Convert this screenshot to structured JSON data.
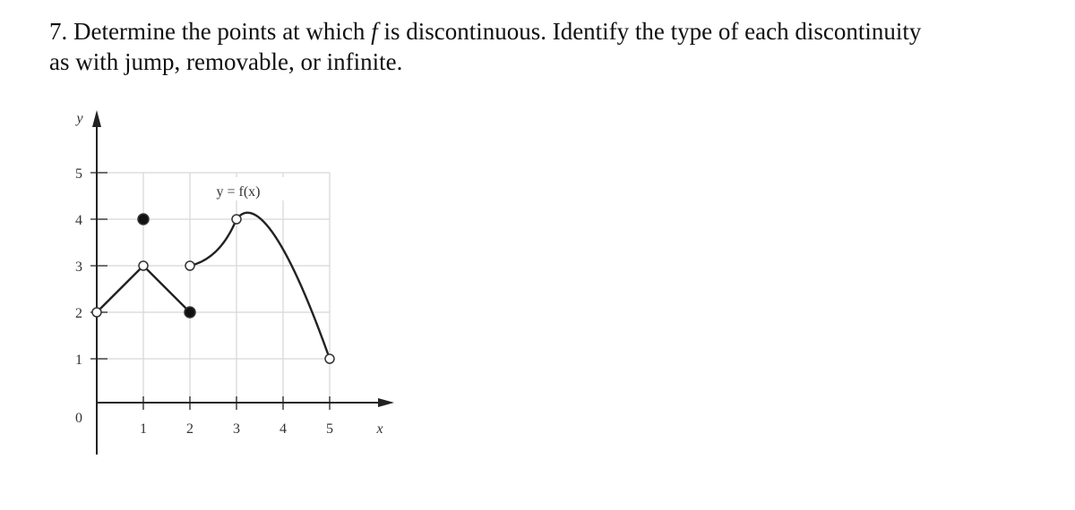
{
  "problem": {
    "number": "7.",
    "line1_before": "Determine the points at which",
    "variable": "f",
    "line1_after": "is discontinuous. Identify the type of each discontinuity",
    "line2": "as with jump, removable, or infinite."
  },
  "figure": {
    "x_label": "x",
    "y_label": "y",
    "curve_label": "y = f(x)",
    "xticks": [
      0,
      1,
      2,
      3,
      4,
      5
    ],
    "yticks": [
      1,
      2,
      3,
      4,
      5
    ],
    "points": [
      {
        "x": 0,
        "y": 2,
        "filled": false
      },
      {
        "x": 1,
        "y": 3,
        "filled": false
      },
      {
        "x": 1,
        "y": 4,
        "filled": true
      },
      {
        "x": 2,
        "y": 2,
        "filled": true
      },
      {
        "x": 2,
        "y": 3,
        "filled": false
      },
      {
        "x": 3,
        "y": 4,
        "filled": false
      },
      {
        "x": 5,
        "y": 1,
        "filled": false
      }
    ]
  }
}
